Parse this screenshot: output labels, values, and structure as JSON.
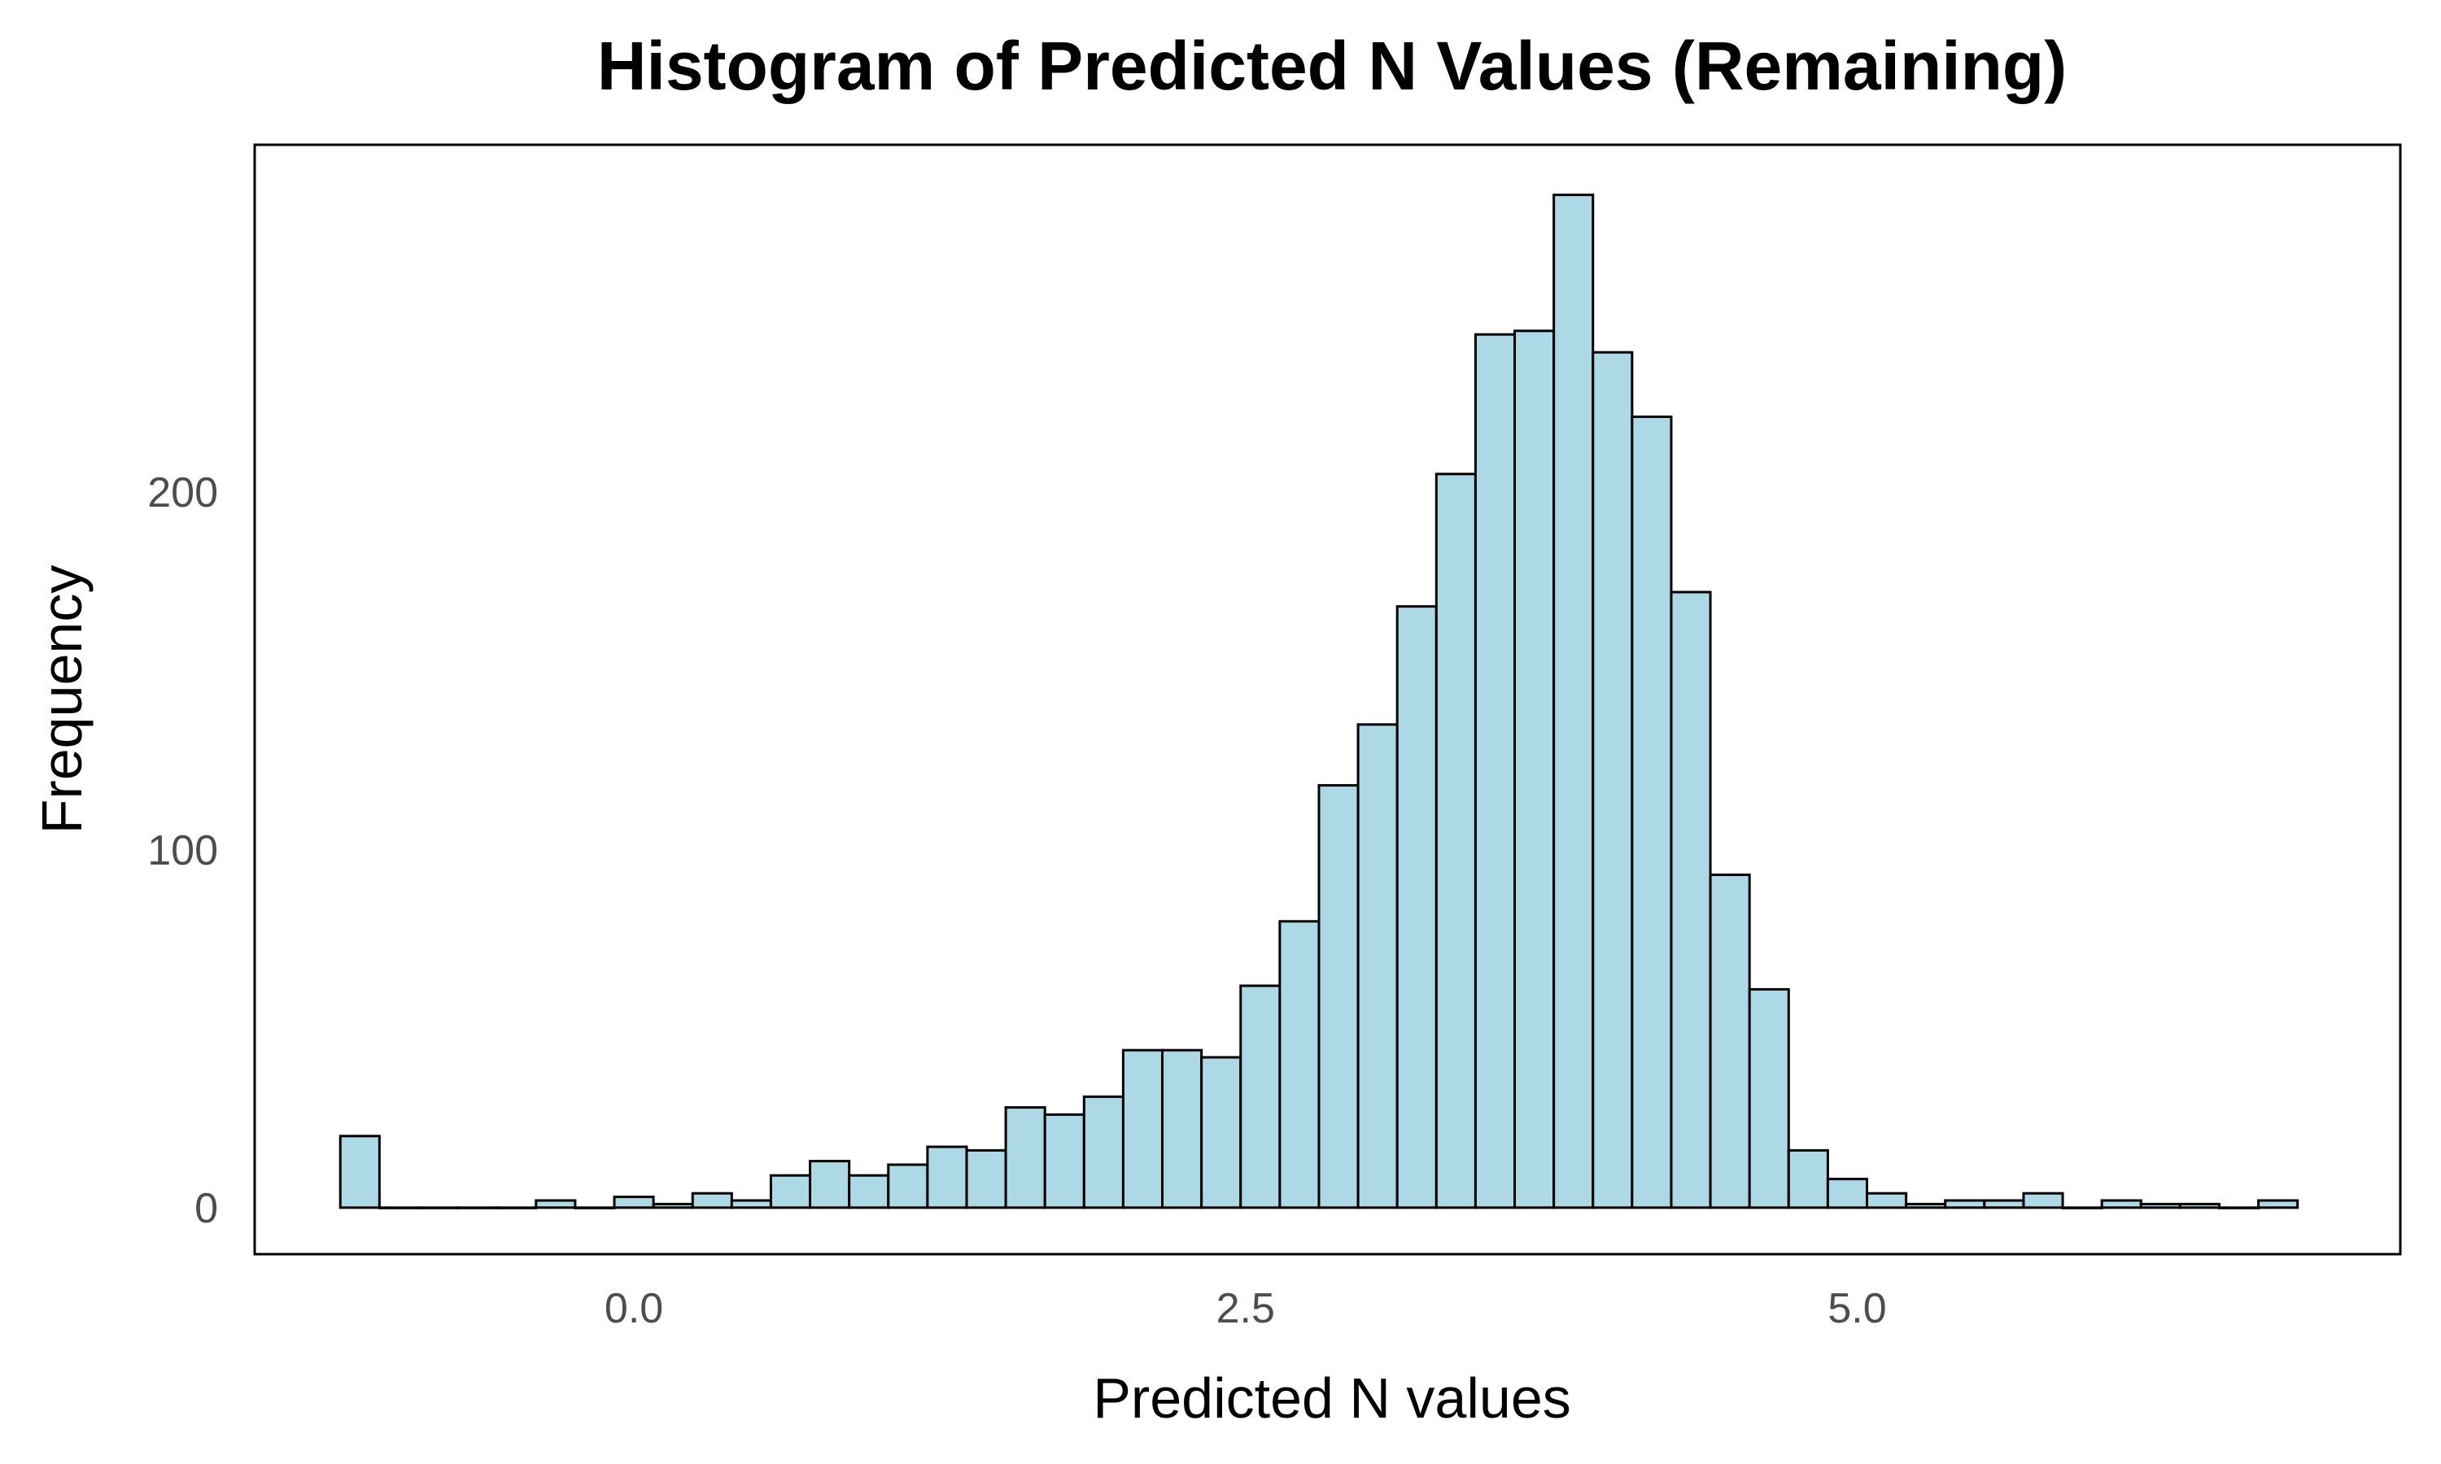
{
  "chart_data": {
    "type": "bar",
    "subtype": "histogram",
    "title": "Histogram of Predicted N Values (Remaining)",
    "xlabel": "Predicted N values",
    "ylabel": "Frequency",
    "xlim": [
      -1.55,
      7.22
    ],
    "ylim": [
      -13,
      297
    ],
    "x_ticks": [
      {
        "value": 0.0,
        "label": "0.0"
      },
      {
        "value": 2.5,
        "label": "2.5"
      },
      {
        "value": 5.0,
        "label": "5.0"
      }
    ],
    "y_ticks": [
      {
        "value": 0,
        "label": "0"
      },
      {
        "value": 100,
        "label": "100"
      },
      {
        "value": 200,
        "label": "200"
      }
    ],
    "bin_start": -1.2,
    "bin_width": 0.16,
    "counts": [
      20,
      0,
      0,
      0,
      0,
      2,
      0,
      3,
      1,
      4,
      2,
      9,
      13,
      9,
      12,
      17,
      16,
      28,
      26,
      31,
      44,
      44,
      42,
      62,
      80,
      118,
      135,
      168,
      205,
      244,
      245,
      283,
      239,
      221,
      172,
      93,
      61,
      16,
      8,
      4,
      1,
      2,
      2,
      4,
      0,
      2,
      1,
      1,
      0,
      2
    ],
    "colors": {
      "fill": "#add8e6",
      "outline": "#000000",
      "tick_text": "#4d4d4d",
      "text": "#000000",
      "background": "#ffffff"
    },
    "grid": false,
    "legend": "none"
  }
}
